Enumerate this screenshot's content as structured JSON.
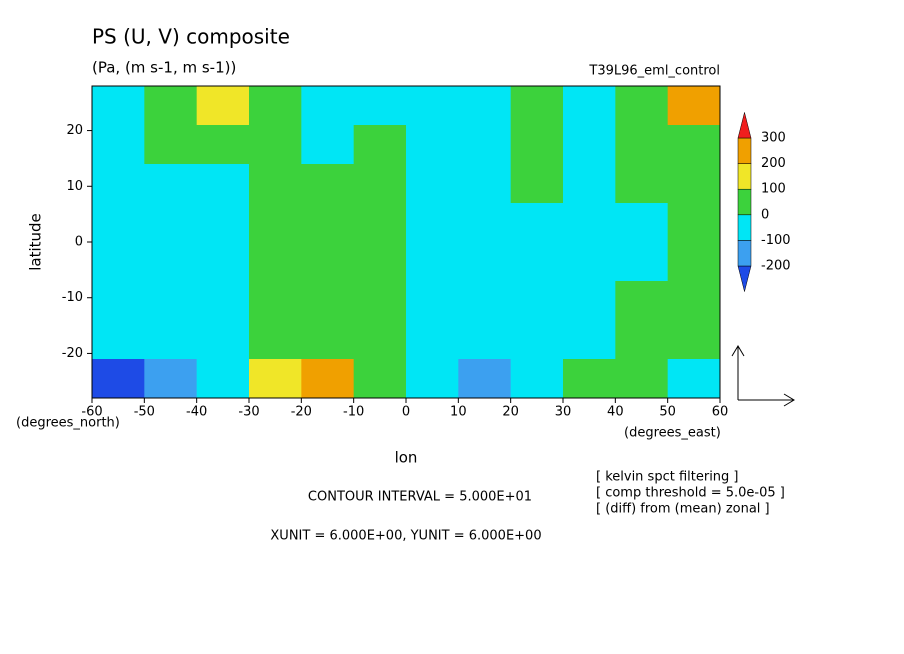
{
  "chart_data": {
    "type": "contour",
    "title": "PS (U, V) composite",
    "subtitle": "(Pa, (m s-1, m s-1))",
    "experiment": "T39L96_eml_control",
    "x_label": "lon",
    "y_label": "latitude",
    "x_units": "(degrees_east)",
    "y_units": "(degrees_north)",
    "contour_interval": "CONTOUR INTERVAL = 5.000E+01",
    "units_note": "XUNIT = 6.000E+00, YUNIT = 6.000E+00",
    "notes": [
      "[ kelvin spct filtering ]",
      "[ comp threshold = 5.0e-05 ]",
      "[ (diff) from (mean) zonal ]"
    ],
    "xlim": [
      -60,
      60
    ],
    "ylim": [
      -28,
      28
    ],
    "xticks": [
      -60,
      -50,
      -40,
      -30,
      -20,
      -10,
      0,
      10,
      20,
      30,
      40,
      50,
      60
    ],
    "yticks": [
      -20,
      -10,
      0,
      10,
      20
    ],
    "x": [
      -55,
      -45,
      -35,
      -25,
      -15,
      -5,
      5,
      15,
      25,
      35,
      45,
      55
    ],
    "y": [
      24.5,
      17.5,
      10.5,
      3.5,
      -3.5,
      -10.5,
      -17.5,
      -24.5
    ],
    "z": [
      [
        -50,
        50,
        150,
        30,
        -60,
        -20,
        -50,
        -60,
        20,
        -80,
        80,
        200
      ],
      [
        -30,
        20,
        50,
        20,
        -40,
        10,
        -50,
        -50,
        20,
        -60,
        20,
        60
      ],
      [
        -30,
        -20,
        -10,
        20,
        10,
        20,
        -40,
        -50,
        10,
        -30,
        10,
        20
      ],
      [
        -50,
        -50,
        -20,
        30,
        30,
        10,
        -50,
        -50,
        -40,
        -30,
        -30,
        20
      ],
      [
        -50,
        -50,
        -10,
        30,
        20,
        10,
        -50,
        -50,
        -40,
        -30,
        -20,
        20
      ],
      [
        -40,
        -30,
        -40,
        10,
        20,
        20,
        -40,
        -40,
        -30,
        -20,
        20,
        30
      ],
      [
        -60,
        -20,
        -30,
        40,
        60,
        30,
        -20,
        -50,
        -10,
        -20,
        30,
        10
      ],
      [
        -220,
        -120,
        -40,
        150,
        220,
        80,
        -50,
        -160,
        -80,
        20,
        60,
        -50
      ]
    ],
    "levels": [
      -200,
      -100,
      0,
      100,
      200,
      300
    ],
    "colors": [
      "#1e4be6",
      "#3ca0f0",
      "#00e6f5",
      "#3cd23c",
      "#f0e628",
      "#f0a000",
      "#f01e1e"
    ]
  }
}
